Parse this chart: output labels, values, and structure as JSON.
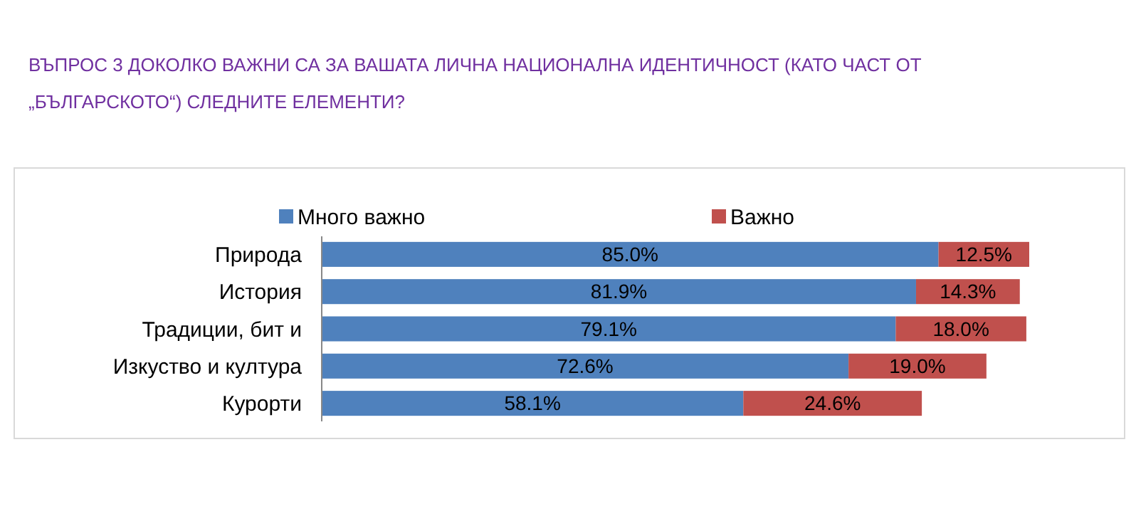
{
  "chart_data": {
    "type": "bar",
    "orientation": "horizontal",
    "stacked": true,
    "title": "ВЪПРОС 3  ДОКОЛКО ВАЖНИ СА ЗА ВАШАТА ЛИЧНА НАЦИОНАЛНА ИДЕНТИЧНОСТ (КАТО ЧАСТ ОТ „БЪЛГАРСКОТО“) СЛЕДНИТЕ ЕЛЕМЕНТИ?",
    "categories": [
      "Природа",
      "История",
      "Традиции, бит и",
      "Изкуство и култура",
      "Курорти"
    ],
    "series": [
      {
        "name": "Много важно",
        "color": "#4f81bd",
        "values": [
          85.0,
          81.9,
          79.1,
          72.6,
          58.1
        ],
        "value_labels": [
          "85.0%",
          "81.9%",
          "79.1%",
          "72.6%",
          "58.1%"
        ]
      },
      {
        "name": "Важно",
        "color": "#c0504d",
        "values": [
          12.5,
          14.3,
          18.0,
          19.0,
          24.6
        ],
        "value_labels": [
          "12.5%",
          "14.3%",
          "18.0%",
          "19.0%",
          "24.6%"
        ]
      }
    ],
    "tick_labels": "y",
    "legend": "top"
  }
}
